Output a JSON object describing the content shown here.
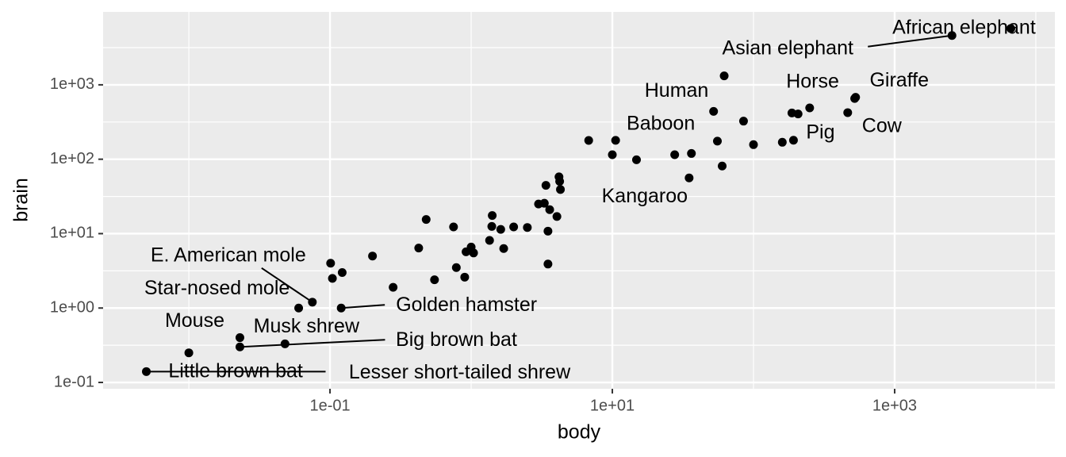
{
  "chart_data": {
    "type": "scatter",
    "x_label": "body",
    "y_label": "brain",
    "log_x": true,
    "log_y": true,
    "grid": true,
    "color": "#000000",
    "xlim": [
      0.00247,
      13650
    ],
    "ylim": [
      0.0822,
      9550
    ],
    "xticks": [
      {
        "value": 0.1,
        "label": "1e-01"
      },
      {
        "value": 10,
        "label": "1e+01"
      },
      {
        "value": 1000,
        "label": "1e+03"
      }
    ],
    "yticks": [
      {
        "value": 0.1,
        "label": "1e-01"
      },
      {
        "value": 1,
        "label": "1e+00"
      },
      {
        "value": 10,
        "label": "1e+01"
      },
      {
        "value": 100,
        "label": "1e+02"
      },
      {
        "value": 1000,
        "label": "1e+03"
      }
    ],
    "minor_xticks": [
      0.01,
      1,
      100,
      10000
    ],
    "minor_yticks": [
      0.316,
      3.16,
      31.6,
      316,
      3162
    ],
    "x": [
      3.385,
      0.48,
      1.35,
      465,
      36.33,
      27.66,
      14.83,
      1.04,
      4.19,
      0.425,
      0.101,
      0.92,
      1,
      0.005,
      0.06,
      3.5,
      2,
      1.7,
      2547,
      0.023,
      187.1,
      521,
      0.785,
      10,
      3.3,
      0.2,
      1.41,
      529,
      207,
      85,
      0.75,
      62,
      6654,
      3.5,
      6.8,
      35,
      4.05,
      0.12,
      0.023,
      0.01,
      1.4,
      250,
      2.5,
      55.5,
      100,
      52.16,
      10.55,
      0.55,
      60,
      3.6,
      4.288,
      0.28,
      0.075,
      0.122,
      0.048,
      192,
      3,
      160,
      0.9,
      1.62,
      0.104,
      4.235
    ],
    "values": [
      44.5,
      15.5,
      8.1,
      423,
      119.5,
      115,
      98.2,
      5.5,
      58,
      6.4,
      4,
      5.7,
      6.6,
      0.14,
      1,
      10.8,
      12.3,
      6.3,
      4603,
      0.3,
      419,
      655,
      3.5,
      115,
      25.6,
      5,
      17.5,
      680,
      406,
      325,
      12.3,
      1320,
      5712,
      3.9,
      179,
      56,
      17,
      1,
      0.4,
      0.25,
      12.5,
      490,
      12.1,
      175,
      157,
      440,
      179.5,
      2.4,
      81,
      21,
      39.2,
      1.9,
      1.2,
      3,
      0.33,
      180,
      25,
      169,
      2.6,
      11.4,
      2.5,
      50.4
    ],
    "labels": [
      null,
      null,
      null,
      "Cow",
      null,
      null,
      null,
      null,
      null,
      null,
      null,
      null,
      null,
      "Lesser short-tailed shrew",
      "Star-nosed mole",
      null,
      null,
      null,
      "Asian elephant",
      "Big brown bat",
      null,
      "Horse",
      null,
      null,
      null,
      null,
      null,
      "Giraffe",
      null,
      null,
      null,
      "Human",
      "African elephant",
      null,
      null,
      "Kangaroo",
      null,
      "Golden hamster",
      "Mouse",
      "Little brown bat",
      null,
      null,
      null,
      null,
      null,
      null,
      "Baboon",
      null,
      null,
      null,
      null,
      null,
      "E. American mole",
      null,
      "Musk shrew",
      "Pig",
      null,
      null,
      null,
      null,
      null,
      null
    ]
  }
}
